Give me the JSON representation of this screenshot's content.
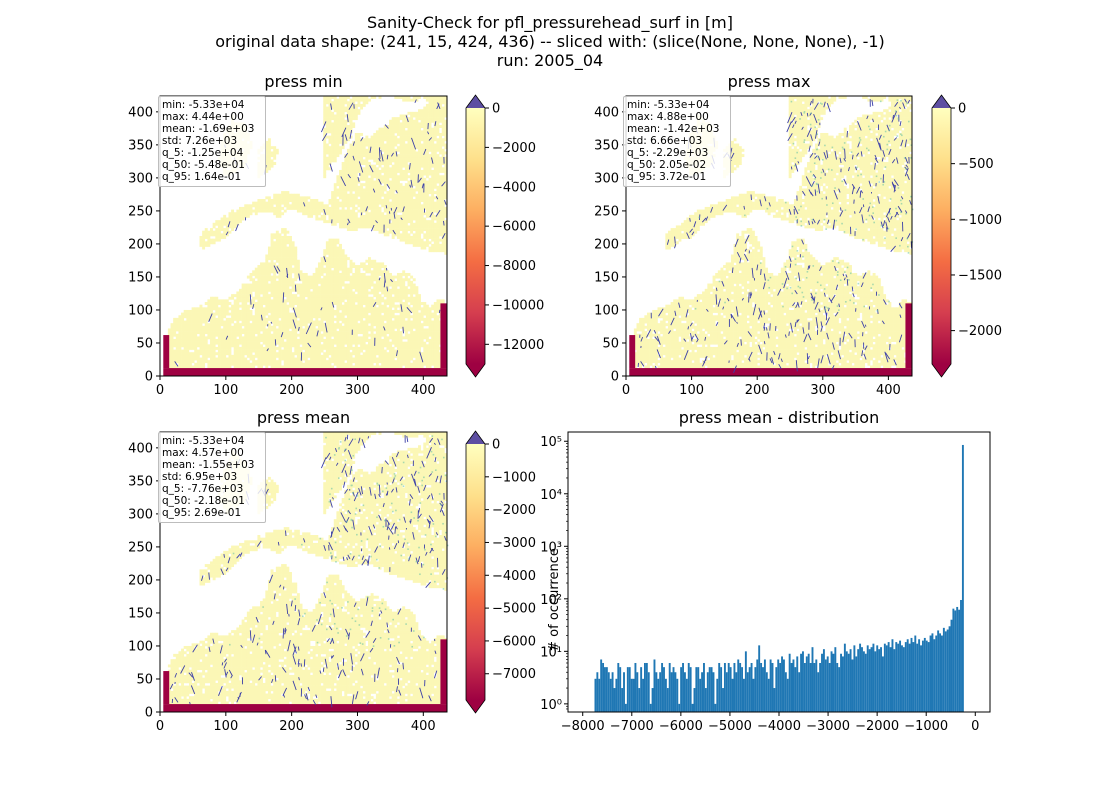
{
  "suptitle": {
    "line1": "Sanity-Check for pfl_pressurehead_surf in [m]",
    "line2": "original data shape: (241, 15, 424, 436) -- sliced with: (slice(None, None, None), -1)",
    "line3": "run: 2005_04"
  },
  "colormap": {
    "name": "Spectral",
    "stops": [
      "#9e0142",
      "#d53e4f",
      "#f46d43",
      "#fdae61",
      "#fee08b",
      "#ffffbf"
    ],
    "over_color": "#5e4fa2",
    "river_color": "#3b3fa8",
    "land_color": "#fbf7b6"
  },
  "chart_data": [
    {
      "type": "heatmap",
      "title": "press min",
      "xlim": [
        0,
        436
      ],
      "ylim": [
        0,
        424
      ],
      "xticks": [
        0,
        100,
        200,
        300,
        400
      ],
      "yticks": [
        0,
        50,
        100,
        150,
        200,
        250,
        300,
        350,
        400
      ],
      "colorbar": {
        "min": -13000,
        "max": 0,
        "ticks": [
          0,
          -2000,
          -4000,
          -6000,
          -8000,
          -10000,
          -12000
        ],
        "tick_labels": [
          "0",
          "−2000",
          "−4000",
          "−6000",
          "−8000",
          "−10000",
          "−12000"
        ],
        "extend": "both"
      },
      "stats": [
        "min: -5.33e+04",
        "max: 4.44e+00",
        "mean: -1.69e+03",
        "std: 7.26e+03",
        "q_5: -1.25e+04",
        "q_50: -5.48e-01",
        "q_95: 1.64e-01"
      ]
    },
    {
      "type": "heatmap",
      "title": "press max",
      "xlim": [
        0,
        436
      ],
      "ylim": [
        0,
        424
      ],
      "xticks": [
        0,
        100,
        200,
        300,
        400
      ],
      "yticks": [
        0,
        50,
        100,
        150,
        200,
        250,
        300,
        350,
        400
      ],
      "colorbar": {
        "min": -2300,
        "max": 0,
        "ticks": [
          0,
          -500,
          -1000,
          -1500,
          -2000
        ],
        "tick_labels": [
          "0",
          "−500",
          "−1000",
          "−1500",
          "−2000"
        ],
        "extend": "both"
      },
      "stats": [
        "min: -5.33e+04",
        "max: 4.88e+00",
        "mean: -1.42e+03",
        "std: 6.66e+03",
        "q_5: -2.29e+03",
        "q_50: 2.05e-02",
        "q_95: 3.72e-01"
      ]
    },
    {
      "type": "heatmap",
      "title": "press mean",
      "xlim": [
        0,
        436
      ],
      "ylim": [
        0,
        424
      ],
      "xticks": [
        0,
        100,
        200,
        300,
        400
      ],
      "yticks": [
        0,
        50,
        100,
        150,
        200,
        250,
        300,
        350,
        400
      ],
      "colorbar": {
        "min": -7800,
        "max": 0,
        "ticks": [
          0,
          -1000,
          -2000,
          -3000,
          -4000,
          -5000,
          -6000,
          -7000
        ],
        "tick_labels": [
          "0",
          "−1000",
          "−2000",
          "−3000",
          "−4000",
          "−5000",
          "−6000",
          "−7000"
        ],
        "extend": "both"
      },
      "stats": [
        "min: -5.33e+04",
        "max: 4.57e+00",
        "mean: -1.55e+03",
        "std: 6.95e+03",
        "q_5: -7.76e+03",
        "q_50: -2.18e-01",
        "q_95: 2.69e-01"
      ]
    },
    {
      "type": "bar",
      "title": "press mean - distribution",
      "ylabel": "# of occurrence",
      "xlabel": "",
      "yscale": "log",
      "xlim": [
        -8300,
        300
      ],
      "ylim": [
        0.7,
        150000
      ],
      "xticks": [
        -8000,
        -7000,
        -6000,
        -5000,
        -4000,
        -3000,
        -2000,
        -1000,
        0
      ],
      "xtick_labels": [
        "−8000",
        "−7000",
        "−6000",
        "−5000",
        "−4000",
        "−3000",
        "−2000",
        "−1000",
        "0"
      ],
      "yticks": [
        1,
        10,
        100,
        1000,
        10000,
        100000
      ],
      "ytick_labels": [
        "10⁰",
        "10¹",
        "10²",
        "10³",
        "10⁴",
        "10⁵"
      ],
      "bar_color": "#1f77b4",
      "bin_start": -7760,
      "bin_width": 38.8,
      "values": [
        3,
        4,
        3,
        7,
        6,
        5,
        5,
        4,
        3,
        4,
        2,
        3,
        6,
        5,
        2,
        4,
        1,
        5,
        5,
        3,
        3,
        6,
        4,
        2,
        5,
        3,
        6,
        6,
        4,
        1,
        2,
        7,
        4,
        3,
        4,
        6,
        5,
        3,
        2,
        6,
        4,
        5,
        4,
        3,
        1,
        5,
        6,
        4,
        3,
        6,
        5,
        1,
        2,
        5,
        5,
        3,
        4,
        6,
        2,
        4,
        5,
        5,
        4,
        1,
        3,
        6,
        5,
        2,
        6,
        4,
        6,
        5,
        3,
        6,
        4,
        7,
        6,
        5,
        3,
        10,
        4,
        5,
        6,
        3,
        5,
        7,
        13,
        6,
        5,
        7,
        4,
        3,
        7,
        6,
        2,
        5,
        7,
        6,
        8,
        7,
        4,
        3,
        9,
        6,
        7,
        5,
        8,
        4,
        9,
        10,
        6,
        8,
        9,
        6,
        12,
        6,
        7,
        4,
        6,
        9,
        11,
        7,
        8,
        6,
        10,
        9,
        12,
        6,
        5,
        9,
        8,
        14,
        10,
        9,
        11,
        7,
        13,
        8,
        11,
        14,
        12,
        10,
        9,
        13,
        11,
        12,
        14,
        10,
        13,
        11,
        12,
        8,
        14,
        13,
        15,
        12,
        17,
        11,
        15,
        14,
        16,
        13,
        12,
        15,
        17,
        14,
        18,
        15,
        20,
        14,
        17,
        13,
        16,
        18,
        16,
        15,
        20,
        22,
        17,
        20,
        25,
        22,
        20,
        28,
        24,
        26,
        30,
        40,
        65,
        60,
        70,
        62,
        95,
        85000
      ]
    }
  ]
}
